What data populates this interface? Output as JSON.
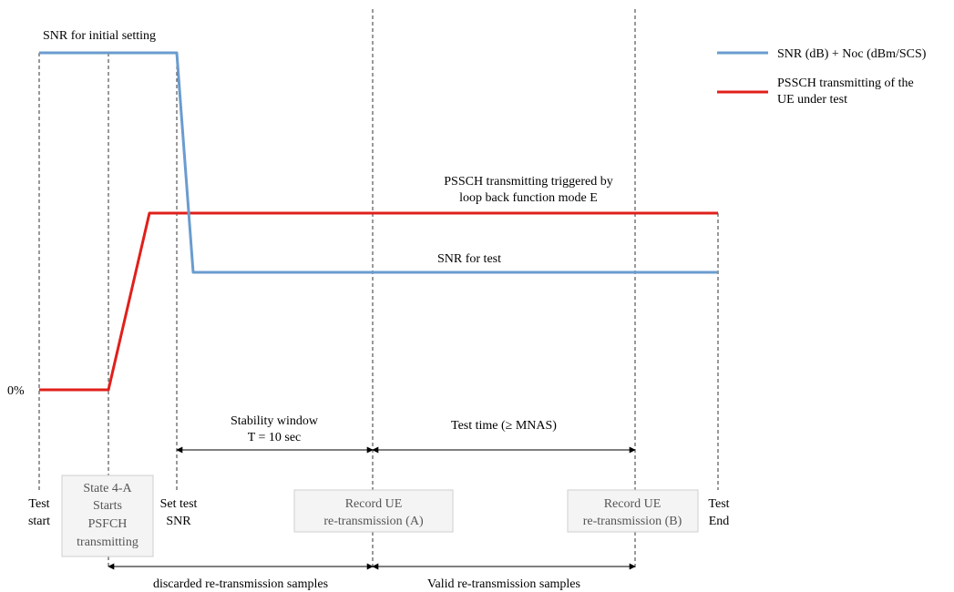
{
  "legend": {
    "blue_label": "SNR (dB) + Noc (dBm/SCS)",
    "red_label_line1": "PSSCH transmitting of the",
    "red_label_line2": "UE under test"
  },
  "colors": {
    "blue": "#6a9ccf",
    "red": "#e0201b",
    "box_border": "#cfcfcf",
    "box_fill": "#f4f4f4"
  },
  "labels": {
    "snr_initial": "SNR for initial setting",
    "pssch_line1": "PSSCH transmitting triggered by",
    "pssch_line2": "loop back function mode E",
    "snr_test": "SNR for test",
    "zero_pct": "0%",
    "stability_line1": "Stability window",
    "stability_line2": "T = 10 sec",
    "test_time": "Test time (≥ MNAS)",
    "discarded": "discarded re-transmission samples",
    "valid": "Valid re-transmission samples"
  },
  "markers": {
    "test_start_1": "Test",
    "test_start_2": "start",
    "state_1": "State 4-A",
    "state_2": "Starts",
    "state_3": "PSFCH",
    "state_4": "transmitting",
    "set_snr_1": "Set test",
    "set_snr_2": "SNR",
    "record_a_1": "Record UE",
    "record_a_2": "re-transmission (A)",
    "record_b_1": "Record UE",
    "record_b_2": "re-transmission (B)",
    "test_end_1": "Test",
    "test_end_2": "End"
  }
}
